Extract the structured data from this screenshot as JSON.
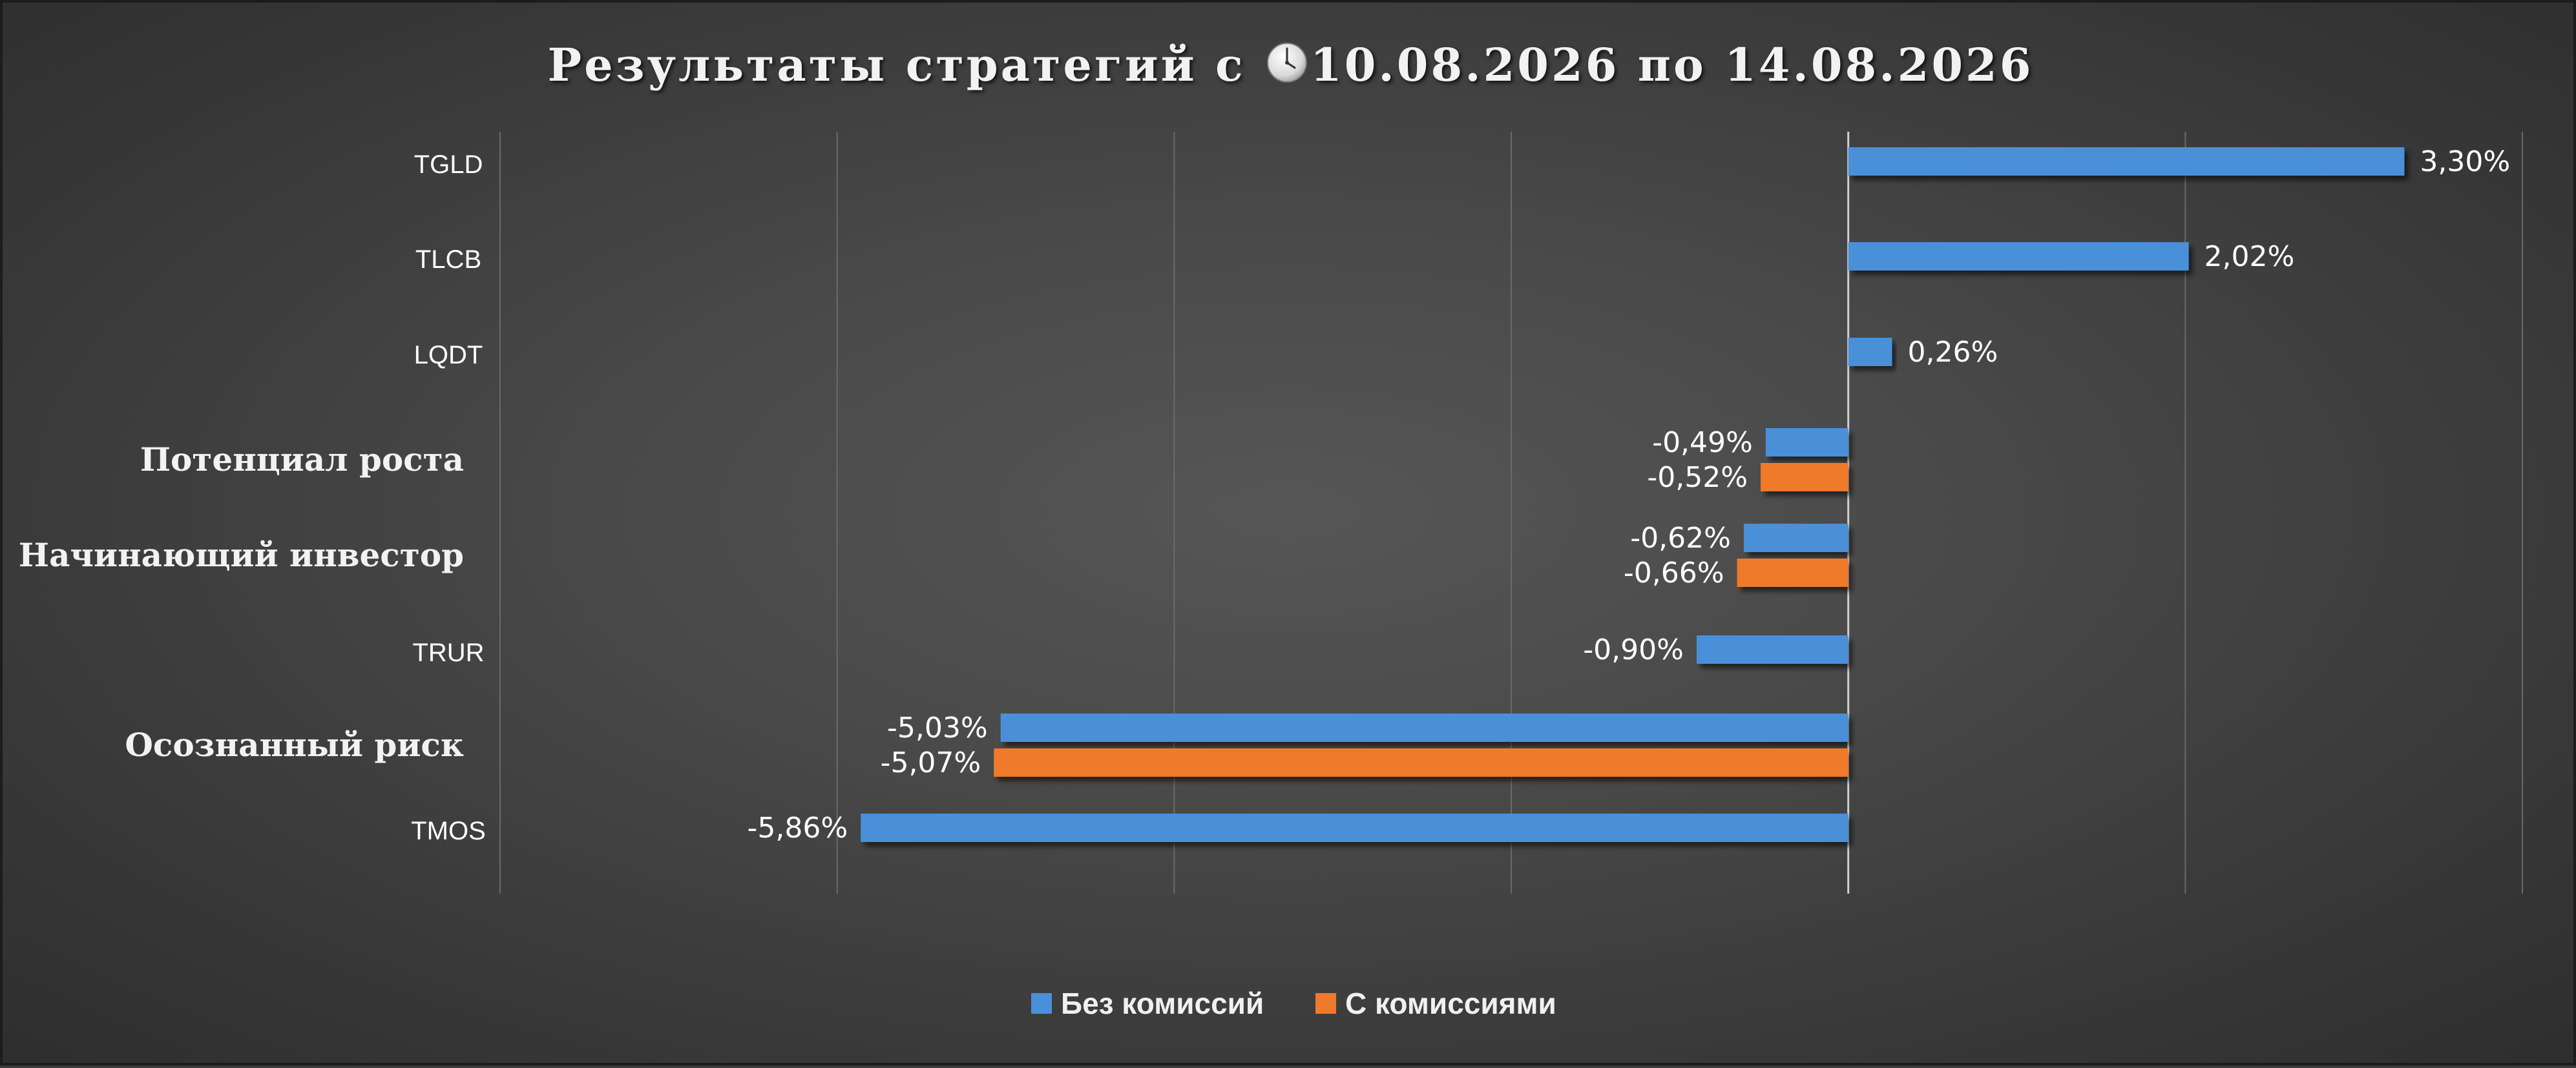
{
  "colors": {
    "series_no_fee": "#4a90d9",
    "series_with_fee": "#ee7a2c",
    "gridline": "#6a6a6a",
    "zero_axis": "#cfcfcf",
    "text": "#ffffff"
  },
  "title": {
    "prefix": "Результаты стратегий с",
    "icon": "clock-icon",
    "suffix": "10.08.2026 по 14.08.2026"
  },
  "chart_data": {
    "type": "bar",
    "orientation": "horizontal",
    "title": "Результаты стратегий с 10.08.2026 по 14.08.2026",
    "categories": [
      "TGLD",
      "TLCB",
      "LQDT",
      "Потенциал роста",
      "Начинающий инвестор",
      "TRUR",
      "Осознанный риск",
      "TMOS"
    ],
    "category_kind": [
      "ticker",
      "ticker",
      "ticker",
      "strategy",
      "strategy",
      "ticker",
      "strategy",
      "ticker"
    ],
    "series": [
      {
        "name": "Без комиссий",
        "values": [
          3.3,
          2.02,
          0.26,
          -0.49,
          -0.62,
          -0.9,
          -5.03,
          -5.86
        ]
      },
      {
        "name": "С комиссиями",
        "values": [
          null,
          null,
          null,
          -0.52,
          -0.66,
          null,
          -5.07,
          null
        ]
      }
    ],
    "data_labels": [
      [
        "3,30%",
        "2,02%",
        "0,26%",
        "-0,49%",
        "-0,62%",
        "-0,90%",
        "-5,03%",
        "-5,86%"
      ],
      [
        null,
        null,
        null,
        "-0,52%",
        "-0,66%",
        null,
        "-5,07%",
        null
      ]
    ],
    "xlim": [
      -8,
      4
    ],
    "x_gridlines": [
      -8,
      -6,
      -4,
      -2,
      0,
      2,
      4
    ],
    "grid": true,
    "xlabel": "",
    "ylabel": "",
    "legend_position": "bottom"
  }
}
